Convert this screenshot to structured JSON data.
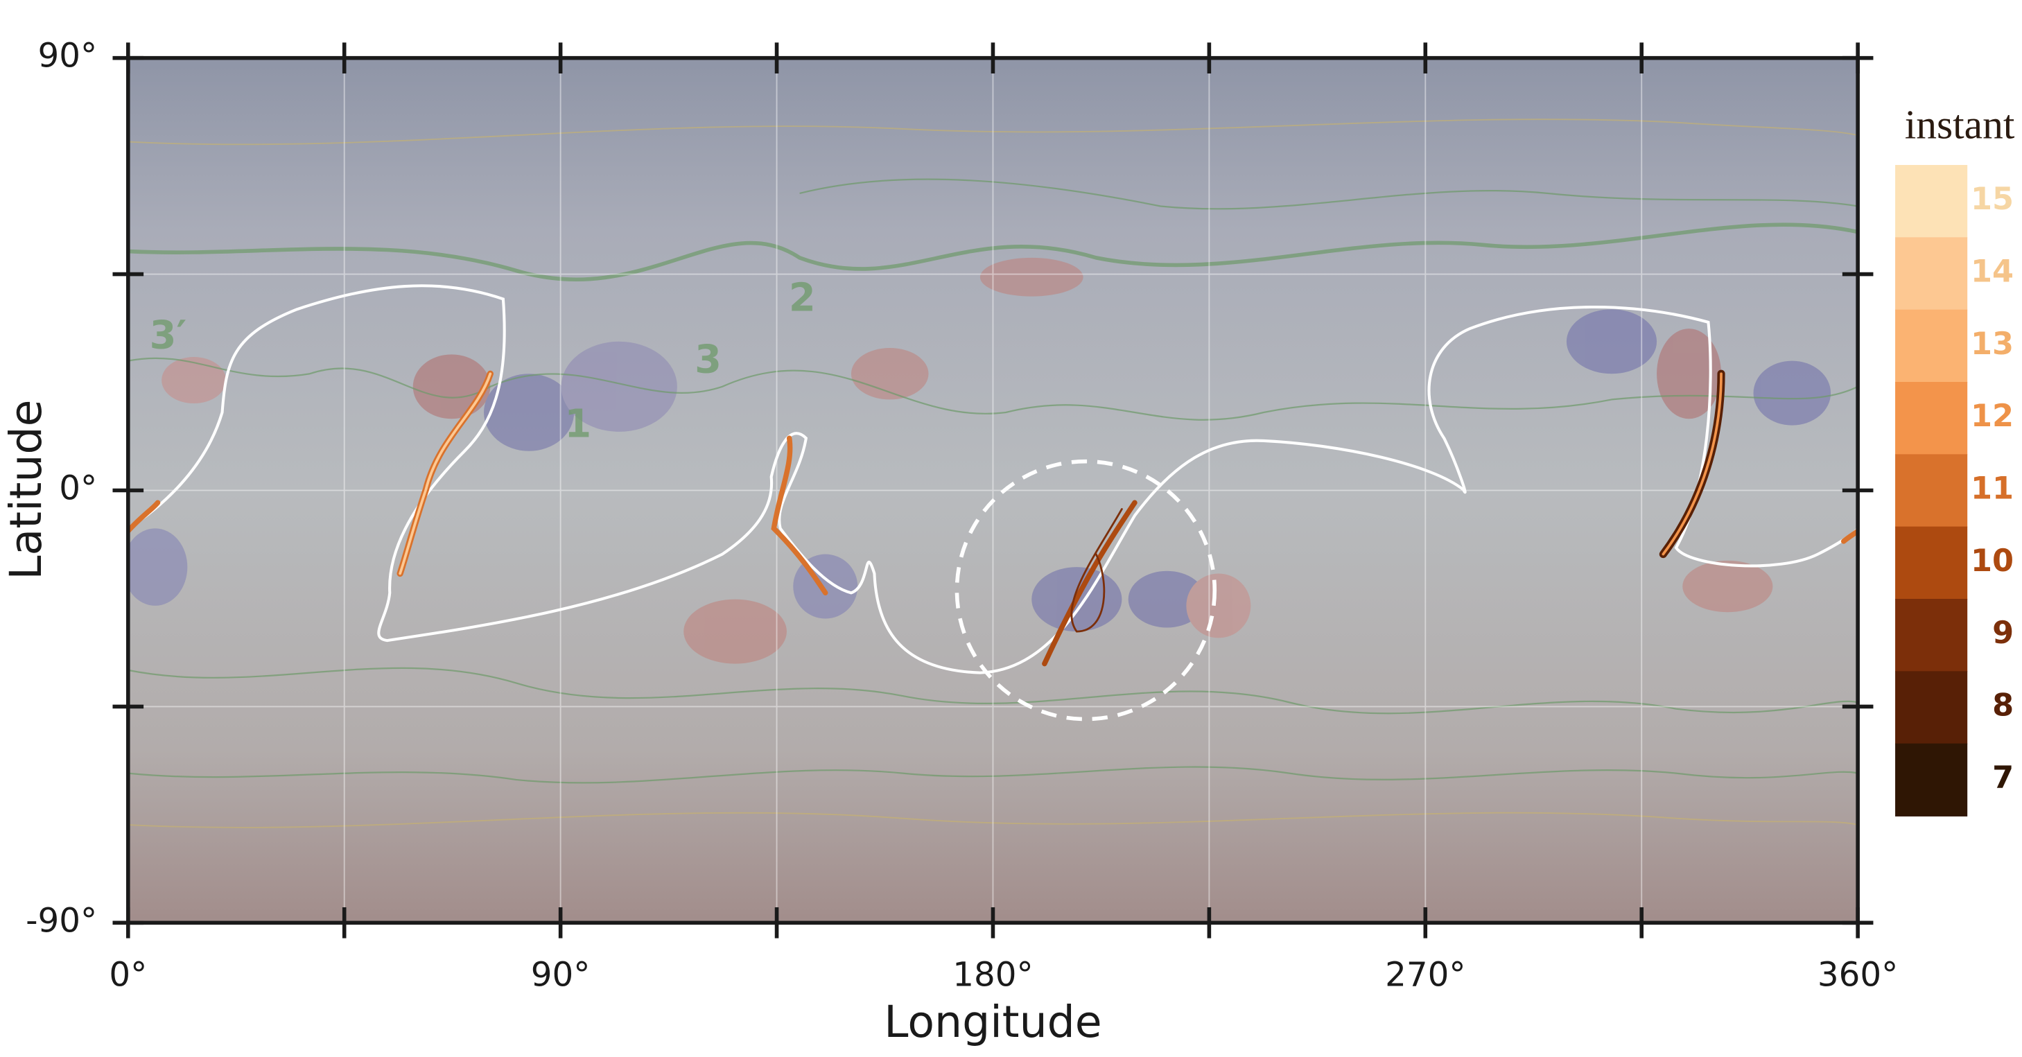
{
  "chart_data": {
    "type": "map",
    "xlabel": "Longitude",
    "ylabel": "Latitude",
    "xlim": [
      0,
      360
    ],
    "ylim": [
      -90,
      90
    ],
    "xticks": [
      {
        "value": 0,
        "label": "0°"
      },
      {
        "value": 90,
        "label": "90°"
      },
      {
        "value": 180,
        "label": "180°"
      },
      {
        "value": 270,
        "label": "270°"
      },
      {
        "value": 360,
        "label": "360°"
      }
    ],
    "xminorticks": [
      45,
      135,
      225,
      315
    ],
    "yticks": [
      {
        "value": -90,
        "label": "-90°"
      },
      {
        "value": 0,
        "label": "0°"
      },
      {
        "value": 90,
        "label": "90°"
      }
    ],
    "yminorticks": [
      -45,
      45
    ],
    "grid": true,
    "annotations": [
      "3′",
      "2",
      "3",
      "1"
    ],
    "colorbar": {
      "title": "instant",
      "levels": [
        15,
        14,
        13,
        12,
        11,
        10,
        9,
        8,
        7
      ],
      "colors": [
        "#fde2b6",
        "#fdc892",
        "#fbb372",
        "#f3944b",
        "#d9722c",
        "#ad4a10",
        "#7c2f0a",
        "#582006",
        "#2f1604"
      ],
      "label_colors": [
        "#f6d6a4",
        "#f5c48a",
        "#f3ae6a",
        "#ee9248",
        "#d66f29",
        "#ad4a10",
        "#7c2f0a",
        "#582006",
        "#2f1604"
      ]
    }
  }
}
